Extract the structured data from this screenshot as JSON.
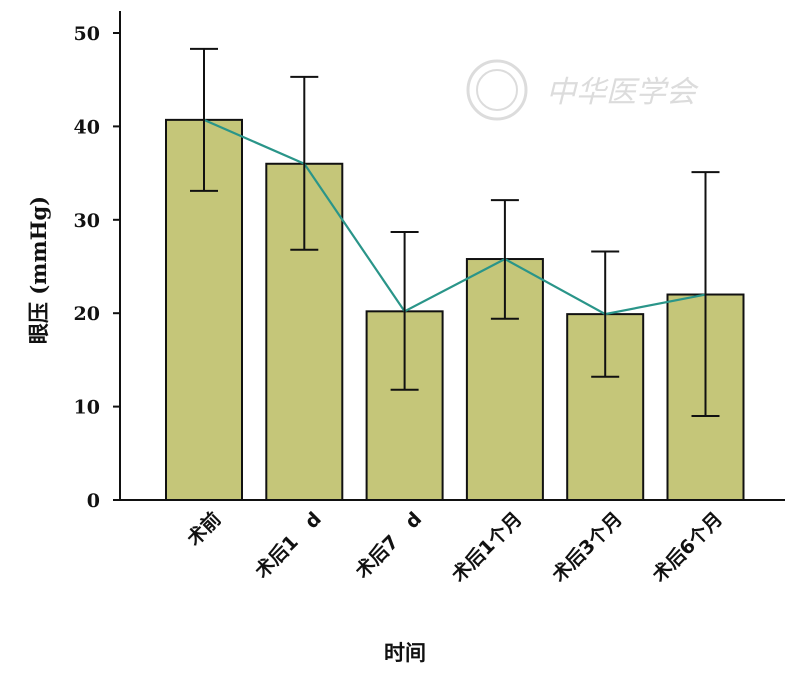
{
  "chart_data": {
    "type": "bar",
    "categories": [
      "术前",
      "术后1　d",
      "术后7　d",
      "术后1个月",
      "术后3个月",
      "术后6个月"
    ],
    "values": [
      40.7,
      36.0,
      20.2,
      25.8,
      19.9,
      22.0
    ],
    "error_low": [
      33.1,
      26.8,
      11.8,
      19.4,
      13.2,
      9.0
    ],
    "error_high": [
      48.3,
      45.3,
      28.7,
      32.1,
      26.6,
      35.1
    ],
    "trend_line": true,
    "xlabel": "时间",
    "ylabel": "眼压 (mmHg)",
    "ylim": [
      0,
      50
    ],
    "yticks": [
      0,
      10,
      20,
      30,
      40,
      50
    ],
    "grid": false,
    "colors": {
      "bar": "#c5c679",
      "bar_edge": "#111111",
      "line": "#2a9589",
      "error": "#111111"
    },
    "watermark": "中华医学会"
  }
}
